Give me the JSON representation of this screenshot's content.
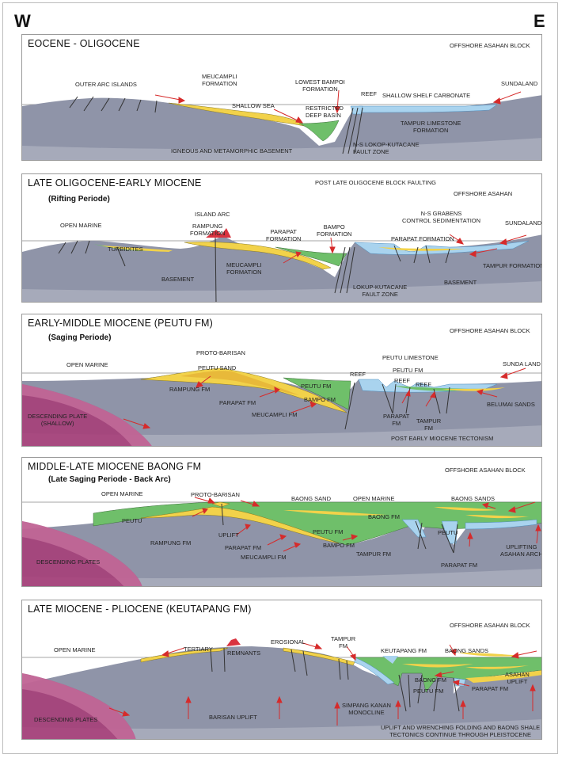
{
  "compass": {
    "west": "W",
    "east": "E"
  },
  "colors": {
    "basement": "#8f94a8",
    "yellow": "#f2d24a",
    "green": "#6fbf6a",
    "blue": "#a9d3ee",
    "red": "#d9333f",
    "magenta": "#a83a76"
  },
  "panels": [
    {
      "title": "EOCENE - OLIGOCENE",
      "subtitle": "",
      "labels": {
        "offshore": "OFFSHORE ASAHAN BLOCK",
        "outer_arc": "OUTER ARC ISLANDS",
        "meucampli": "MEUCAMPLI\nFORMATION",
        "lowest_bampoi": "LOWEST BAMPOI\nFORMATION",
        "reef": "REEF",
        "shelf": "SHALLOW SHELF CARBONATE",
        "sundaland": "SUNDALAND",
        "shallow_sea": "SHALLOW SEA",
        "restricted": "RESTRICTED\nDEEP BASIN",
        "tampur": "TAMPUR LIMESTONE\nFORMATION",
        "basement": "IGNEOUS AND METAMORPHIC BASEMENT",
        "fault": "N-S LOKOP-KUTACANE\nFAULT ZONE"
      }
    },
    {
      "title": "LATE OLIGOCENE-EARLY MIOCENE",
      "subtitle": "(Rifting Periode)",
      "labels": {
        "post_late": "POST LATE OLIGOCENE BLOCK FAULTING",
        "offshore": "OFFSHORE ASAHAN",
        "island_arc": "ISLAND ARC",
        "open_marine": "OPEN MARINE",
        "rampung": "RAMPUNG\nFORMATION",
        "parapat": "PARAPAT\nFORMATION",
        "bampo": "BAMPO\nFORMATION",
        "grabens": "N-S GRABENS\nCONTROL SEDIMENTATION",
        "sundaland": "SUNDALAND",
        "parapat2": "PARAPAT FORMATION",
        "turbidites": "TURBIDITES",
        "meucampli": "MEUCAMPLI\nFORMATION",
        "tampur": "TAMPUR FORMATION",
        "basement_w": "BASEMENT",
        "basement_e": "BASEMENT",
        "fault": "LOKUP-KUTACANE\nFAULT ZONE"
      }
    },
    {
      "title": "EARLY-MIDDLE MIOCENE (PEUTU FM)",
      "subtitle": "(Saging Periode)",
      "labels": {
        "offshore": "OFFSHORE ASAHAN BLOCK",
        "proto": "PROTO-BARISAN",
        "peutu_ls": "PEUTU LIMESTONE",
        "open_marine": "OPEN MARINE",
        "peutu_sand": "PEUTU SAND",
        "reef1": "REEF",
        "peutu_fm": "PEUTU FM",
        "sunda": "SUNDA LAND",
        "reef2": "REEF",
        "reef3": "REEF",
        "rampung": "RAMPUNG FM",
        "peutu_fm2": "PEUTU FM",
        "bampo": "BAMPO FM",
        "parapat": "PARAPAT FM",
        "belumai": "BELUMAI SANDS",
        "meucampli": "MEUCAMPLI FM",
        "parapat2": "PARAPAT\nFM",
        "tampur": "TAMPUR\nFM",
        "descending": "DESCENDING PLATE\n(SHALLOW)",
        "post_early": "POST EARLY MIOCENE TECTONISM"
      }
    },
    {
      "title": "MIDDLE-LATE MIOCENE BAONG FM",
      "subtitle": "(Late Saging Periode - Back Arc)",
      "labels": {
        "offshore": "OFFSHORE ASAHAN BLOCK",
        "open_marine": "OPEN MARINE",
        "proto": "PROTO-BARISAN",
        "baong_sand": "BAONG SAND",
        "open_marine2": "OPEN MARINE",
        "baong_sands": "BAONG SANDS",
        "peutu": "PEUTU",
        "baong_fm": "BAONG FM",
        "uplift": "UPLIFT",
        "peutu_fm": "PEUTU FM",
        "peutu2": "PEUTU",
        "rampung": "RAMPUNG FM",
        "parapat": "PARAPAT FM",
        "bampo": "BAMPO FM",
        "tampur": "TAMPUR FM",
        "uplifting": "UPLIFTING\nASAHAN ARCH",
        "meucampli": "MEUCAMPLI FM",
        "parapat2": "PARAPAT FM",
        "descending": "DESCENDING PLATES"
      }
    },
    {
      "title": "LATE MIOCENE - PLIOCENE (KEUTAPANG FM)",
      "subtitle": "",
      "labels": {
        "offshore": "OFFSHORE ASAHAN BLOCK",
        "open_marine": "OPEN MARINE",
        "tertiary": "TERTIARY",
        "remnants": "REMNANTS",
        "erosional": "EROSIONAL",
        "tampur": "TAMPUR\nFM",
        "keutapang": "KEUTAPANG FM",
        "baong_sands": "BAONG SANDS",
        "baong_fm": "BAONG FM",
        "descending": "DESCENDING PLATES",
        "barisan": "BARISAN UPLIFT",
        "simpang": "SIMPANG KANAN\nMONOCLINE",
        "peutu": "PEUTU FM",
        "parapat": "PARAPAT FM",
        "asahan": "ASAHAN\nUPLIFT",
        "uplift_note": "UPLIFT AND WRENCHING FOLDING AND BAONG SHALE\nTECTONICS CONTINUE THROUGH PLEISTOCENE"
      }
    }
  ]
}
